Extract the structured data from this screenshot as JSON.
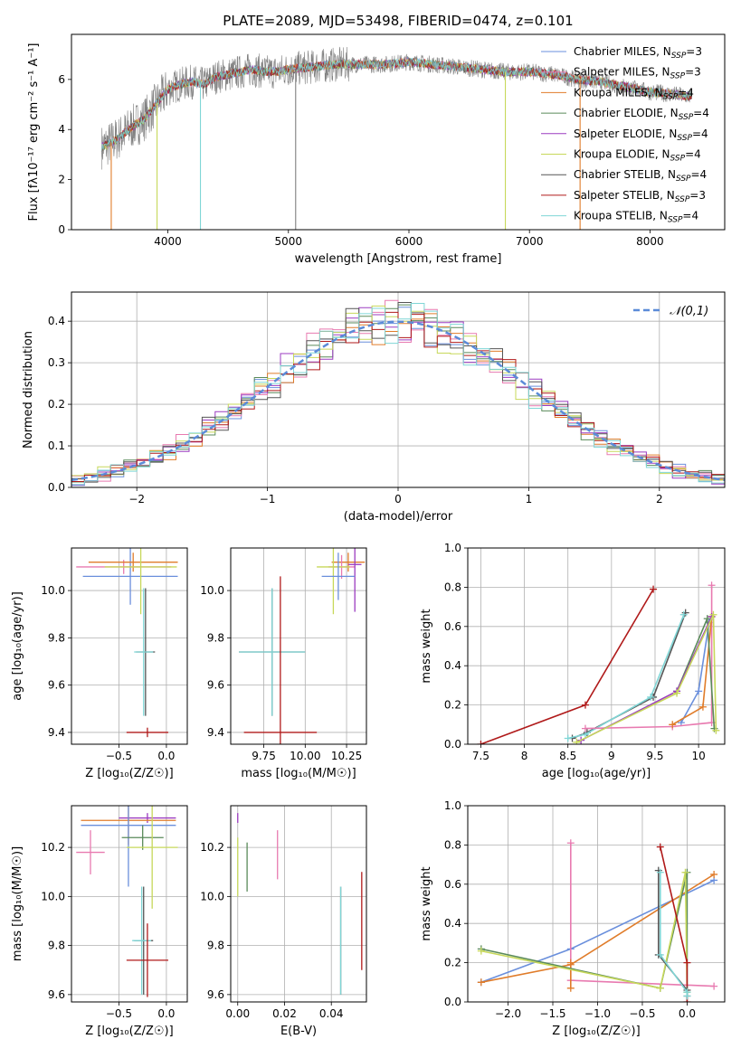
{
  "figure_title": "PLATE=2089, MJD=53498, FIBERID=0474, z=0.101",
  "colors": {
    "Chabrier MILES": "#6a8fdc",
    "Salpeter MILES": "#e87ab0",
    "Kroupa MILES": "#e07c2a",
    "Chabrier ELODIE": "#5a8a5a",
    "Salpeter ELODIE": "#9b3bc0",
    "Kroupa ELODIE": "#c7d85a",
    "Chabrier STELIB": "#555555",
    "Salpeter STELIB": "#b01a1a",
    "Kroupa STELIB": "#7fd6d6",
    "data": "#808080",
    "gaussian": "#5b8bd8"
  },
  "chart_data": [
    {
      "type": "line",
      "id": "spectrum",
      "title": "PLATE=2089, MJD=53498, FIBERID=0474, z=0.101",
      "xlabel": "wavelength [Angstrom, rest frame]",
      "ylabel": "Flux [fλ10⁻¹⁷ erg cm⁻² s⁻¹ A⁻¹]",
      "xlim": [
        3200,
        8620
      ],
      "ylim": [
        0,
        7.8
      ],
      "xticks": [
        4000,
        5000,
        6000,
        7000,
        8000
      ],
      "yticks": [
        0,
        2,
        4,
        6
      ],
      "legend": [
        "Chabrier MILES, N_SSP=3",
        "Salpeter MILES, N_SSP=3",
        "Kroupa MILES, N_SSP=4",
        "Chabrier ELODIE, N_SSP=4",
        "Salpeter ELODIE, N_SSP=4",
        "Kroupa ELODIE, N_SSP=4",
        "Chabrier STELIB, N_SSP=4",
        "Salpeter STELIB, N_SSP=3",
        "Kroupa STELIB, N_SSP=4"
      ],
      "legend_position": "right",
      "continuum": {
        "x": [
          3450,
          3500,
          3600,
          3700,
          3800,
          3900,
          4000,
          4100,
          4200,
          4300,
          4400,
          4500,
          4600,
          4700,
          4800,
          4900,
          5000,
          5200,
          5400,
          5600,
          5800,
          6000,
          6200,
          6400,
          6600,
          6800,
          7000,
          7200,
          7400,
          7600,
          7800,
          8000,
          8200,
          8350
        ],
        "y": [
          3.3,
          3.4,
          3.7,
          4.1,
          4.4,
          5.0,
          5.6,
          5.8,
          5.9,
          5.8,
          6.1,
          6.2,
          6.3,
          6.4,
          6.3,
          6.3,
          6.4,
          6.5,
          6.6,
          6.6,
          6.6,
          6.7,
          6.6,
          6.5,
          6.4,
          6.3,
          6.3,
          6.2,
          6.0,
          5.9,
          5.7,
          5.5,
          5.4,
          5.3
        ]
      },
      "absorption_spikes": [
        {
          "x": 3530,
          "series": "Kroupa MILES",
          "depth_to": 0
        },
        {
          "x": 3910,
          "series": "Kroupa ELODIE",
          "depth_to": 0
        },
        {
          "x": 4270,
          "series": "Kroupa STELIB",
          "depth_to": 0
        },
        {
          "x": 5060,
          "series": "data",
          "depth_to": 0
        },
        {
          "x": 6800,
          "series": "Kroupa ELODIE",
          "depth_to": 0
        },
        {
          "x": 7420,
          "series": "Kroupa MILES",
          "depth_to": 0
        }
      ]
    },
    {
      "type": "bar",
      "id": "residual-histogram",
      "xlabel": "(data-model)/error",
      "ylabel": "Normed distribution",
      "xlim": [
        -2.5,
        2.5
      ],
      "ylim": [
        0,
        0.47
      ],
      "xticks": [
        -2,
        -1,
        0,
        1,
        2
      ],
      "yticks": [
        0.0,
        0.1,
        0.2,
        0.3,
        0.4
      ],
      "legend": [
        "𝒩(0,1)"
      ],
      "legend_position": "upper-right",
      "gaussian": {
        "mean": 0,
        "sigma": 1
      },
      "bin_width": 0.1,
      "envelope_series": [
        "Chabrier MILES",
        "Salpeter MILES",
        "Kroupa MILES",
        "Chabrier ELODIE",
        "Salpeter ELODIE",
        "Kroupa ELODIE",
        "Chabrier STELIB",
        "Salpeter STELIB",
        "Kroupa STELIB"
      ]
    },
    {
      "type": "scatter",
      "id": "age-vs-Z",
      "xlabel": "Z [log₁₀(Z/Z☉)]",
      "ylabel": "age  [log₁₀(age/yr)]",
      "xlim": [
        -1.0,
        0.22
      ],
      "ylim": [
        9.35,
        10.18
      ],
      "xticks": [
        -0.5,
        0.0
      ],
      "xticklabels": [
        "−0.5",
        "0.0"
      ],
      "yticks": [
        9.4,
        9.6,
        9.8,
        10.0
      ],
      "points": [
        {
          "series": "Salpeter MILES",
          "x": -0.45,
          "y": 10.1,
          "xerr": 0.5,
          "yerr": 0.03
        },
        {
          "series": "Chabrier MILES",
          "x": -0.38,
          "y": 10.06,
          "xerr": 0.5,
          "yerr": 0.12
        },
        {
          "series": "Kroupa MILES",
          "x": -0.35,
          "y": 10.12,
          "xerr": 0.47,
          "yerr": 0.04
        },
        {
          "series": "Kroupa ELODIE",
          "x": -0.27,
          "y": 10.1,
          "xerr": 0.38,
          "yerr": 0.2
        },
        {
          "series": "Chabrier STELIB",
          "x": -0.22,
          "y": 9.74,
          "xerr": 0.1,
          "yerr": 0.27
        },
        {
          "series": "Kroupa STELIB",
          "x": -0.24,
          "y": 9.74,
          "xerr": 0.1,
          "yerr": 0.27
        },
        {
          "series": "Salpeter STELIB",
          "x": -0.2,
          "y": 9.4,
          "xerr": 0.22,
          "yerr": 0.02
        }
      ]
    },
    {
      "type": "scatter",
      "id": "age-vs-mass",
      "xlabel": "mass [log₁₀(M/M☉)]",
      "yticks": [
        9.4,
        9.6,
        9.8,
        10.0
      ],
      "xlim": [
        9.55,
        10.37
      ],
      "ylim": [
        9.35,
        10.18
      ],
      "xticks": [
        9.75,
        10.0,
        10.25
      ],
      "xticklabels": [
        "9.75",
        "10.00",
        "10.25"
      ],
      "points": [
        {
          "series": "Kroupa MILES",
          "x": 10.26,
          "y": 10.12,
          "xerr": 0.1,
          "yerr": 0.04
        },
        {
          "series": "Salpeter MILES",
          "x": 10.22,
          "y": 10.1,
          "xerr": 0.08,
          "yerr": 0.05
        },
        {
          "series": "Salpeter ELODIE",
          "x": 10.3,
          "y": 10.11,
          "xerr": 0.04,
          "yerr": 0.2
        },
        {
          "series": "Kroupa ELODIE",
          "x": 10.17,
          "y": 10.1,
          "xerr": 0.1,
          "yerr": 0.2
        },
        {
          "series": "Chabrier MILES",
          "x": 10.2,
          "y": 10.06,
          "xerr": 0.1,
          "yerr": 0.1
        },
        {
          "series": "Chabrier STELIB",
          "x": 9.8,
          "y": 9.74,
          "xerr": 0.2,
          "yerr": 0.27
        },
        {
          "series": "Kroupa STELIB",
          "x": 9.8,
          "y": 9.74,
          "xerr": 0.2,
          "yerr": 0.27
        },
        {
          "series": "Salpeter STELIB",
          "x": 9.85,
          "y": 9.4,
          "xerr": 0.22,
          "yerr": 0.66
        }
      ]
    },
    {
      "type": "line",
      "id": "massweight-vs-age",
      "xlabel": "age  [log₁₀(age/yr)]",
      "ylabel": "mass weight",
      "xlim": [
        7.35,
        10.3
      ],
      "ylim": [
        0,
        1.0
      ],
      "xticks": [
        7.5,
        8.0,
        8.5,
        9.0,
        9.5,
        10.0
      ],
      "yticks": [
        0.0,
        0.2,
        0.4,
        0.6,
        0.8,
        1.0
      ],
      "series": [
        {
          "name": "Salpeter STELIB",
          "x": [
            7.5,
            8.7,
            9.48
          ],
          "y": [
            0.0,
            0.2,
            0.79
          ]
        },
        {
          "name": "Chabrier STELIB",
          "x": [
            8.55,
            8.72,
            9.48,
            9.85
          ],
          "y": [
            0.03,
            0.06,
            0.24,
            0.67
          ]
        },
        {
          "name": "Kroupa STELIB",
          "x": [
            8.5,
            8.7,
            9.45,
            9.83
          ],
          "y": [
            0.03,
            0.05,
            0.24,
            0.66
          ]
        },
        {
          "name": "Chabrier MILES",
          "x": [
            9.8,
            10.0,
            10.12
          ],
          "y": [
            0.11,
            0.27,
            0.62
          ]
        },
        {
          "name": "Salpeter MILES",
          "x": [
            8.7,
            9.7,
            10.15,
            10.15
          ],
          "y": [
            0.08,
            0.09,
            0.11,
            0.81
          ]
        },
        {
          "name": "Kroupa MILES",
          "x": [
            9.7,
            10.05,
            10.15
          ],
          "y": [
            0.1,
            0.19,
            0.65
          ]
        },
        {
          "name": "Chabrier ELODIE",
          "x": [
            9.75,
            10.1,
            10.18
          ],
          "y": [
            0.27,
            0.64,
            0.08
          ]
        },
        {
          "name": "Salpeter ELODIE",
          "x": [
            8.65,
            9.75,
            10.15
          ],
          "y": [
            0.02,
            0.27,
            0.65
          ]
        },
        {
          "name": "Kroupa ELODIE",
          "x": [
            8.6,
            9.75,
            10.17,
            10.2
          ],
          "y": [
            0.01,
            0.26,
            0.66,
            0.07
          ]
        }
      ]
    },
    {
      "type": "scatter",
      "id": "mass-vs-Z",
      "xlabel": "Z [log₁₀(Z/Z☉)]",
      "ylabel": "mass [log₁₀(M/M☉)]",
      "xlim": [
        -1.0,
        0.22
      ],
      "ylim": [
        9.57,
        10.37
      ],
      "xticks": [
        -0.5,
        0.0
      ],
      "xticklabels": [
        "−0.5",
        "0.0"
      ],
      "yticks": [
        9.6,
        9.8,
        10.0,
        10.2
      ],
      "points": [
        {
          "series": "Salpeter ELODIE",
          "x": -0.2,
          "y": 10.32,
          "xerr": 0.3,
          "yerr": 0.02
        },
        {
          "series": "Kroupa MILES",
          "x": -0.4,
          "y": 10.31,
          "xerr": 0.5,
          "yerr": 0.1
        },
        {
          "series": "Chabrier MILES",
          "x": -0.4,
          "y": 10.29,
          "xerr": 0.5,
          "yerr": 0.25
        },
        {
          "series": "Chabrier ELODIE",
          "x": -0.25,
          "y": 10.24,
          "xerr": 0.22,
          "yerr": 0.05
        },
        {
          "series": "Kroupa ELODIE",
          "x": -0.15,
          "y": 10.2,
          "xerr": 0.27,
          "yerr": 0.25
        },
        {
          "series": "Salpeter MILES",
          "x": -0.8,
          "y": 10.18,
          "xerr": 0.15,
          "yerr": 0.09
        },
        {
          "series": "Chabrier STELIB",
          "x": -0.24,
          "y": 9.82,
          "xerr": 0.1,
          "yerr": 0.22
        },
        {
          "series": "Kroupa STELIB",
          "x": -0.26,
          "y": 9.82,
          "xerr": 0.1,
          "yerr": 0.22
        },
        {
          "series": "Salpeter STELIB",
          "x": -0.2,
          "y": 9.74,
          "xerr": 0.22,
          "yerr": 0.15
        }
      ]
    },
    {
      "type": "scatter",
      "id": "mass-vs-EBV",
      "xlabel": "E(B-V)",
      "xlim": [
        -0.003,
        0.055
      ],
      "ylim": [
        9.57,
        10.37
      ],
      "xticks": [
        0.0,
        0.02,
        0.04
      ],
      "xticklabels": [
        "0.00",
        "0.02",
        "0.04"
      ],
      "yticks": [
        9.6,
        9.8,
        10.0,
        10.2
      ],
      "points": [
        {
          "series": "Salpeter ELODIE",
          "x": 0.0,
          "y": 10.32,
          "yerr": 0.02
        },
        {
          "series": "Kroupa ELODIE",
          "x": 0.0,
          "y": 10.12,
          "yerr": 0.12
        },
        {
          "series": "Chabrier ELODIE",
          "x": 0.004,
          "y": 10.12,
          "yerr": 0.1
        },
        {
          "series": "Salpeter MILES",
          "x": 0.017,
          "y": 10.17,
          "yerr": 0.1
        },
        {
          "series": "Chabrier STELIB",
          "x": 0.044,
          "y": 9.82,
          "yerr": 0.22
        },
        {
          "series": "Kroupa STELIB",
          "x": 0.044,
          "y": 9.82,
          "yerr": 0.22
        },
        {
          "series": "Salpeter STELIB",
          "x": 0.053,
          "y": 9.9,
          "yerr": 0.2
        }
      ]
    },
    {
      "type": "line",
      "id": "massweight-vs-Z",
      "xlabel": "Z [log₁₀(Z/Z☉)]",
      "ylabel": "mass weight",
      "xlim": [
        -2.45,
        0.42
      ],
      "ylim": [
        0,
        1.0
      ],
      "xticks": [
        -2.0,
        -1.5,
        -1.0,
        -0.5,
        0.0
      ],
      "xticklabels": [
        "−2.0",
        "−1.5",
        "−1.0",
        "−0.5",
        "0.0"
      ],
      "yticks": [
        0.0,
        0.2,
        0.4,
        0.6,
        0.8,
        1.0
      ],
      "series": [
        {
          "name": "Chabrier MILES",
          "x": [
            -2.3,
            -1.3,
            0.3
          ],
          "y": [
            0.1,
            0.27,
            0.62
          ]
        },
        {
          "name": "Kroupa MILES",
          "x": [
            -2.3,
            -1.3,
            0.3
          ],
          "y": [
            0.1,
            0.19,
            0.65
          ]
        },
        {
          "name": "Salpeter MILES",
          "x": [
            -1.3,
            -1.3,
            -1.3,
            0.3
          ],
          "y": [
            0.81,
            0.11,
            0.11,
            0.08
          ]
        },
        {
          "name": "Kroupa MILES2",
          "x": [
            -1.3,
            -1.3
          ],
          "y": [
            0.2,
            0.07
          ]
        },
        {
          "name": "Chabrier ELODIE",
          "x": [
            -2.3,
            -0.3,
            0.0,
            0.0
          ],
          "y": [
            0.27,
            0.07,
            0.66,
            0.05
          ]
        },
        {
          "name": "Kroupa ELODIE",
          "x": [
            -2.3,
            -0.3,
            -0.02,
            0.0
          ],
          "y": [
            0.26,
            0.07,
            0.66,
            0.05
          ]
        },
        {
          "name": "Salpeter STELIB",
          "x": [
            -0.3,
            0.0,
            0.0
          ],
          "y": [
            0.79,
            0.2,
            0.0
          ]
        },
        {
          "name": "Chabrier STELIB",
          "x": [
            -0.32,
            -0.32,
            0.0,
            0.0
          ],
          "y": [
            0.67,
            0.24,
            0.06,
            0.03
          ]
        },
        {
          "name": "Kroupa STELIB",
          "x": [
            -0.3,
            -0.3,
            0.0,
            0.0
          ],
          "y": [
            0.66,
            0.24,
            0.05,
            0.03
          ]
        }
      ]
    }
  ]
}
